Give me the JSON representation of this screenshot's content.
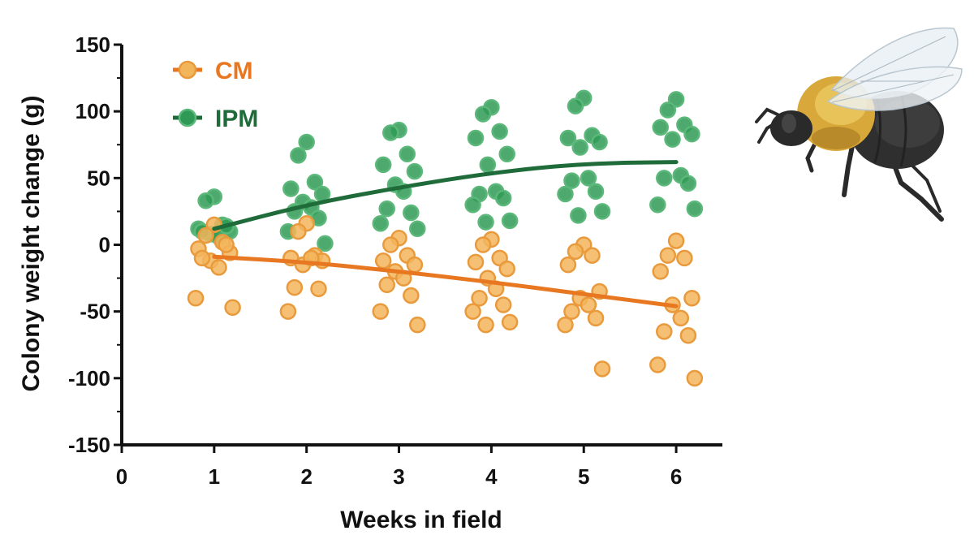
{
  "chart_data": {
    "type": "scatter",
    "title": "",
    "xlabel": "Weeks in field",
    "ylabel": "Colony weight change (g)",
    "xlim": [
      0,
      6.5
    ],
    "ylim": [
      -150,
      150
    ],
    "x_ticks": [
      "0",
      "1",
      "2",
      "3",
      "4",
      "5",
      "6"
    ],
    "y_ticks": [
      "150",
      "100",
      "50",
      "0",
      "-50",
      "-100",
      "-150"
    ],
    "legend": "top-left",
    "series": [
      {
        "name": "CM",
        "color": "#E87722",
        "point_fill": "#F3B55A",
        "point_edge": "#E89A3C",
        "trend": [
          [
            1,
            -9
          ],
          [
            2,
            -13
          ],
          [
            3,
            -20
          ],
          [
            4,
            -28
          ],
          [
            5,
            -37
          ],
          [
            6,
            -46
          ]
        ],
        "points": [
          [
            1,
            15
          ],
          [
            1,
            7
          ],
          [
            1,
            2
          ],
          [
            1,
            -3
          ],
          [
            1,
            -6
          ],
          [
            1,
            -12
          ],
          [
            1,
            -17
          ],
          [
            1,
            -10
          ],
          [
            1,
            0
          ],
          [
            1,
            -40
          ],
          [
            1,
            -47
          ],
          [
            2,
            16
          ],
          [
            2,
            10
          ],
          [
            2,
            -8
          ],
          [
            2,
            -10
          ],
          [
            2,
            -12
          ],
          [
            2,
            -15
          ],
          [
            2,
            -10
          ],
          [
            2,
            -32
          ],
          [
            2,
            -33
          ],
          [
            2,
            -50
          ],
          [
            3,
            5
          ],
          [
            3,
            0
          ],
          [
            3,
            -8
          ],
          [
            3,
            -12
          ],
          [
            3,
            -15
          ],
          [
            3,
            -20
          ],
          [
            3,
            -25
          ],
          [
            3,
            -30
          ],
          [
            3,
            -38
          ],
          [
            3,
            -50
          ],
          [
            3,
            -60
          ],
          [
            4,
            4
          ],
          [
            4,
            0
          ],
          [
            4,
            -10
          ],
          [
            4,
            -13
          ],
          [
            4,
            -18
          ],
          [
            4,
            -25
          ],
          [
            4,
            -33
          ],
          [
            4,
            -40
          ],
          [
            4,
            -45
          ],
          [
            4,
            -50
          ],
          [
            4,
            -58
          ],
          [
            4,
            -60
          ],
          [
            5,
            0
          ],
          [
            5,
            -5
          ],
          [
            5,
            -8
          ],
          [
            5,
            -15
          ],
          [
            5,
            -35
          ],
          [
            5,
            -40
          ],
          [
            5,
            -45
          ],
          [
            5,
            -50
          ],
          [
            5,
            -55
          ],
          [
            5,
            -60
          ],
          [
            5,
            -93
          ],
          [
            6,
            3
          ],
          [
            6,
            -8
          ],
          [
            6,
            -10
          ],
          [
            6,
            -20
          ],
          [
            6,
            -40
          ],
          [
            6,
            -45
          ],
          [
            6,
            -55
          ],
          [
            6,
            -65
          ],
          [
            6,
            -68
          ],
          [
            6,
            -90
          ],
          [
            6,
            -100
          ]
        ]
      },
      {
        "name": "IPM",
        "color": "#1F6B3A",
        "point_fill": "#2E9A55",
        "point_edge": "#5CB87A",
        "trend": [
          [
            1,
            12
          ],
          [
            2,
            30
          ],
          [
            3,
            43
          ],
          [
            4,
            54
          ],
          [
            5,
            61
          ],
          [
            6,
            62
          ]
        ],
        "points": [
          [
            1,
            36
          ],
          [
            1,
            33
          ],
          [
            1,
            15
          ],
          [
            1,
            12
          ],
          [
            1,
            10
          ],
          [
            1,
            8
          ],
          [
            1,
            6
          ],
          [
            1,
            10
          ],
          [
            1,
            14
          ],
          [
            2,
            77
          ],
          [
            2,
            67
          ],
          [
            2,
            47
          ],
          [
            2,
            42
          ],
          [
            2,
            38
          ],
          [
            2,
            32
          ],
          [
            2,
            28
          ],
          [
            2,
            25
          ],
          [
            2,
            20
          ],
          [
            2,
            10
          ],
          [
            2,
            1
          ],
          [
            3,
            86
          ],
          [
            3,
            84
          ],
          [
            3,
            68
          ],
          [
            3,
            60
          ],
          [
            3,
            55
          ],
          [
            3,
            45
          ],
          [
            3,
            40
          ],
          [
            3,
            27
          ],
          [
            3,
            24
          ],
          [
            3,
            16
          ],
          [
            3,
            12
          ],
          [
            4,
            103
          ],
          [
            4,
            98
          ],
          [
            4,
            85
          ],
          [
            4,
            80
          ],
          [
            4,
            68
          ],
          [
            4,
            60
          ],
          [
            4,
            40
          ],
          [
            4,
            38
          ],
          [
            4,
            35
          ],
          [
            4,
            30
          ],
          [
            4,
            18
          ],
          [
            4,
            17
          ],
          [
            5,
            110
          ],
          [
            5,
            104
          ],
          [
            5,
            82
          ],
          [
            5,
            80
          ],
          [
            5,
            77
          ],
          [
            5,
            73
          ],
          [
            5,
            50
          ],
          [
            5,
            48
          ],
          [
            5,
            40
          ],
          [
            5,
            38
          ],
          [
            5,
            25
          ],
          [
            5,
            22
          ],
          [
            6,
            109
          ],
          [
            6,
            101
          ],
          [
            6,
            90
          ],
          [
            6,
            88
          ],
          [
            6,
            83
          ],
          [
            6,
            79
          ],
          [
            6,
            52
          ],
          [
            6,
            50
          ],
          [
            6,
            46
          ],
          [
            6,
            30
          ],
          [
            6,
            27
          ]
        ]
      }
    ]
  }
}
